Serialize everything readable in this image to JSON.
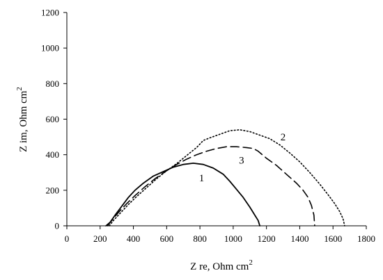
{
  "chart_data": {
    "type": "line",
    "xlabel": "Z re, Ohm cm",
    "xlabel_sup": "2",
    "ylabel": "Z im, Ohm  cm",
    "ylabel_sup": "2",
    "xlim": [
      0,
      1800
    ],
    "ylim": [
      0,
      1200
    ],
    "x_ticks": [
      0,
      200,
      400,
      600,
      800,
      1000,
      1200,
      1400,
      1600,
      1800
    ],
    "y_ticks": [
      0,
      200,
      400,
      600,
      800,
      1000,
      1200
    ],
    "grid": false,
    "legend": "none",
    "series": [
      {
        "name": "1",
        "style": "solid",
        "color": "#000000",
        "label_at": [
          810,
          270
        ],
        "points": [
          [
            235,
            0
          ],
          [
            260,
            20
          ],
          [
            290,
            60
          ],
          [
            330,
            110
          ],
          [
            370,
            160
          ],
          [
            410,
            200
          ],
          [
            460,
            240
          ],
          [
            520,
            280
          ],
          [
            580,
            305
          ],
          [
            640,
            330
          ],
          [
            700,
            345
          ],
          [
            760,
            352
          ],
          [
            820,
            345
          ],
          [
            880,
            325
          ],
          [
            940,
            290
          ],
          [
            980,
            250
          ],
          [
            1020,
            205
          ],
          [
            1060,
            160
          ],
          [
            1100,
            105
          ],
          [
            1130,
            60
          ],
          [
            1150,
            30
          ],
          [
            1160,
            0
          ]
        ]
      },
      {
        "name": "2",
        "style": "dotted",
        "color": "#000000",
        "label_at": [
          1300,
          500
        ],
        "points": [
          [
            255,
            0
          ],
          [
            280,
            30
          ],
          [
            320,
            70
          ],
          [
            370,
            120
          ],
          [
            420,
            165
          ],
          [
            480,
            215
          ],
          [
            540,
            265
          ],
          [
            600,
            310
          ],
          [
            660,
            350
          ],
          [
            720,
            395
          ],
          [
            780,
            440
          ],
          [
            820,
            480
          ],
          [
            860,
            495
          ],
          [
            920,
            515
          ],
          [
            980,
            535
          ],
          [
            1040,
            540
          ],
          [
            1100,
            530
          ],
          [
            1160,
            510
          ],
          [
            1220,
            490
          ],
          [
            1280,
            455
          ],
          [
            1340,
            410
          ],
          [
            1400,
            360
          ],
          [
            1460,
            300
          ],
          [
            1520,
            235
          ],
          [
            1570,
            175
          ],
          [
            1610,
            125
          ],
          [
            1640,
            80
          ],
          [
            1660,
            40
          ],
          [
            1670,
            0
          ]
        ]
      },
      {
        "name": "3",
        "style": "dashed",
        "color": "#000000",
        "label_at": [
          1050,
          370
        ],
        "points": [
          [
            245,
            0
          ],
          [
            270,
            30
          ],
          [
            310,
            75
          ],
          [
            360,
            125
          ],
          [
            410,
            170
          ],
          [
            470,
            220
          ],
          [
            530,
            265
          ],
          [
            600,
            310
          ],
          [
            660,
            345
          ],
          [
            720,
            375
          ],
          [
            780,
            400
          ],
          [
            840,
            420
          ],
          [
            900,
            435
          ],
          [
            960,
            445
          ],
          [
            1020,
            445
          ],
          [
            1080,
            440
          ],
          [
            1120,
            435
          ],
          [
            1150,
            420
          ],
          [
            1200,
            380
          ],
          [
            1260,
            340
          ],
          [
            1320,
            290
          ],
          [
            1380,
            240
          ],
          [
            1420,
            200
          ],
          [
            1450,
            160
          ],
          [
            1470,
            115
          ],
          [
            1485,
            60
          ],
          [
            1490,
            0
          ]
        ]
      }
    ]
  }
}
